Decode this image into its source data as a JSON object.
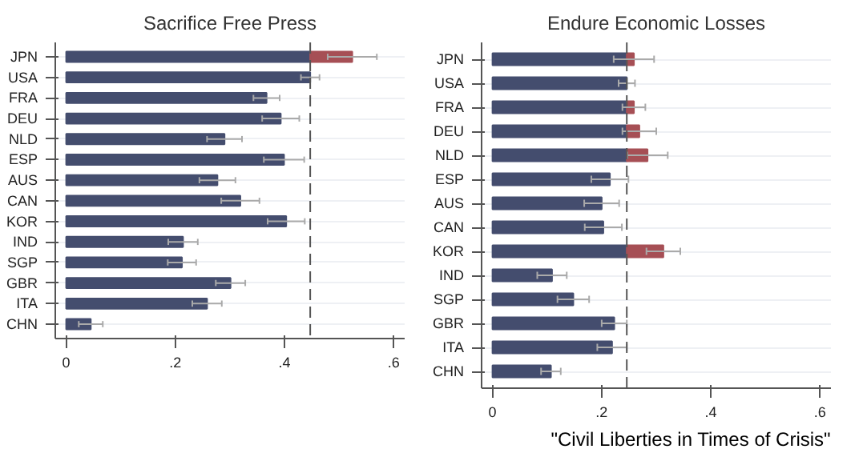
{
  "chart_data": [
    {
      "type": "bar",
      "orientation": "horizontal",
      "stacked": true,
      "title": "Sacrifice Free Press",
      "categories": [
        "JPN",
        "USA",
        "FRA",
        "DEU",
        "NLD",
        "ESP",
        "AUS",
        "CAN",
        "KOR",
        "IND",
        "SGP",
        "GBR",
        "ITA",
        "CHN"
      ],
      "series": [
        {
          "color": "#444d6e",
          "values": [
            0.447,
            0.447,
            0.367,
            0.393,
            0.29,
            0.399,
            0.277,
            0.319,
            0.403,
            0.214,
            0.212,
            0.301,
            0.258,
            0.045
          ],
          "errors": [
            null,
            0.017,
            0.024,
            0.034,
            0.032,
            0.037,
            0.033,
            0.035,
            0.034,
            0.027,
            0.026,
            0.027,
            0.027,
            0.022
          ]
        },
        {
          "color": "#a64f55",
          "values": [
            0.077,
            null,
            null,
            null,
            null,
            null,
            null,
            null,
            null,
            null,
            null,
            null,
            null,
            null
          ],
          "errors": [
            0.045,
            null,
            null,
            null,
            null,
            null,
            null,
            null,
            null,
            null,
            null,
            null,
            null,
            null
          ]
        }
      ],
      "xlim": [
        -0.02,
        0.62
      ],
      "xticks": [
        0,
        {
          "value": 0.2,
          "label": ".2"
        },
        {
          "value": 0.4,
          "label": ".4"
        },
        {
          "value": 0.6,
          "label": ".6"
        }
      ],
      "ref_lines": [
        {
          "axis": "x",
          "value": 0.447,
          "color": "#555555",
          "line_style": "dashed"
        }
      ],
      "grid": "y"
    },
    {
      "type": "bar",
      "orientation": "horizontal",
      "stacked": true,
      "title": "Endure Economic Losses",
      "categories": [
        "JPN",
        "USA",
        "FRA",
        "DEU",
        "NLD",
        "ESP",
        "AUS",
        "CAN",
        "KOR",
        "IND",
        "SGP",
        "GBR",
        "ITA",
        "CHN"
      ],
      "series": [
        {
          "color": "#444d6e",
          "values": [
            0.246,
            0.246,
            0.246,
            0.246,
            0.246,
            0.215,
            0.2,
            0.203,
            0.246,
            0.109,
            0.148,
            0.223,
            0.219,
            0.107
          ],
          "errors": [
            null,
            0.015,
            null,
            null,
            null,
            0.034,
            0.032,
            0.034,
            null,
            0.027,
            0.029,
            0.023,
            0.027,
            0.018
          ]
        },
        {
          "color": "#a64f55",
          "values": [
            0.013,
            null,
            0.013,
            0.023,
            0.038,
            null,
            null,
            null,
            0.067,
            null,
            null,
            null,
            null,
            null
          ],
          "errors": [
            0.037,
            null,
            0.021,
            0.031,
            0.037,
            null,
            null,
            null,
            0.031,
            null,
            null,
            null,
            null,
            null
          ]
        }
      ],
      "xlim": [
        -0.02,
        0.62
      ],
      "xticks": [
        0,
        {
          "value": 0.2,
          "label": ".2"
        },
        {
          "value": 0.4,
          "label": ".4"
        },
        {
          "value": 0.6,
          "label": ".6"
        }
      ],
      "ref_lines": [
        {
          "axis": "x",
          "value": 0.246,
          "color": "#555555",
          "line_style": "dashed"
        }
      ],
      "grid": "y",
      "annotations": [
        "\"Civil Liberties in Times of Crisis\""
      ]
    }
  ]
}
